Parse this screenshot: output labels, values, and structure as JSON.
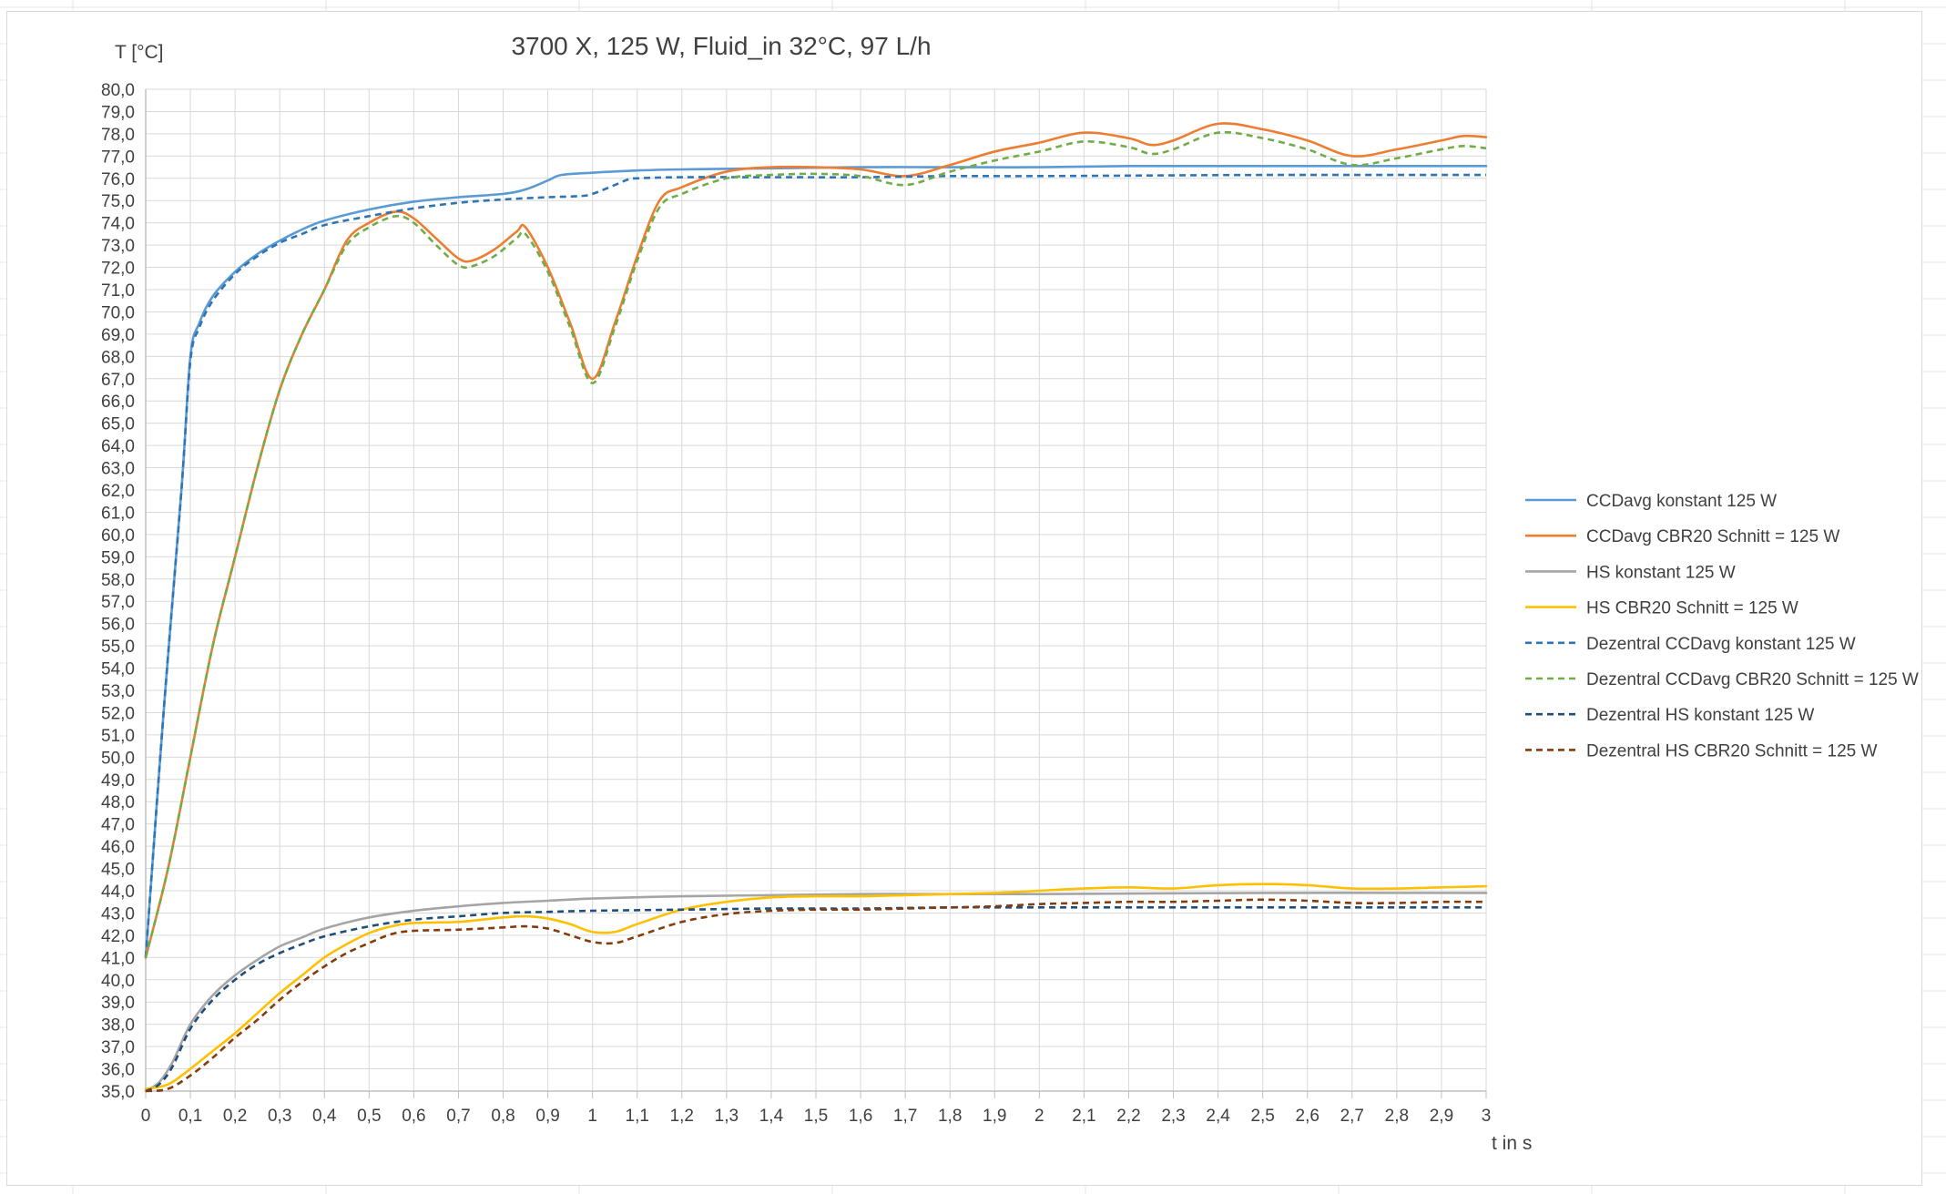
{
  "chart_data": {
    "type": "line",
    "title": "3700 X, 125 W, Fluid_in 32°C, 97 L/h",
    "ylabel": "T [°C]",
    "xlabel": "t in s",
    "xlim": [
      0,
      3
    ],
    "ylim": [
      35,
      80
    ],
    "x_ticks": [
      "0",
      "0,1",
      "0,2",
      "0,3",
      "0,4",
      "0,5",
      "0,6",
      "0,7",
      "0,8",
      "0,9",
      "1",
      "1,1",
      "1,2",
      "1,3",
      "1,4",
      "1,5",
      "1,6",
      "1,7",
      "1,8",
      "1,9",
      "2",
      "2,1",
      "2,2",
      "2,3",
      "2,4",
      "2,5",
      "2,6",
      "2,7",
      "2,8",
      "2,9",
      "3"
    ],
    "y_ticks": [
      "35,0",
      "36,0",
      "37,0",
      "38,0",
      "39,0",
      "40,0",
      "41,0",
      "42,0",
      "43,0",
      "44,0",
      "45,0",
      "46,0",
      "47,0",
      "48,0",
      "49,0",
      "50,0",
      "51,0",
      "52,0",
      "53,0",
      "54,0",
      "55,0",
      "56,0",
      "57,0",
      "58,0",
      "59,0",
      "60,0",
      "61,0",
      "62,0",
      "63,0",
      "64,0",
      "65,0",
      "66,0",
      "67,0",
      "68,0",
      "69,0",
      "70,0",
      "71,0",
      "72,0",
      "73,0",
      "74,0",
      "75,0",
      "76,0",
      "77,0",
      "78,0",
      "79,0",
      "80,0"
    ],
    "grid": true,
    "legend_position": "right",
    "series": [
      {
        "name": "CCDavg konstant 125 W",
        "color": "#5b9bd5",
        "dash": "solid",
        "points": [
          [
            0,
            41
          ],
          [
            0.04,
            52
          ],
          [
            0.08,
            62
          ],
          [
            0.1,
            68
          ],
          [
            0.12,
            69.5
          ],
          [
            0.15,
            70.7
          ],
          [
            0.2,
            71.8
          ],
          [
            0.25,
            72.6
          ],
          [
            0.3,
            73.2
          ],
          [
            0.35,
            73.7
          ],
          [
            0.4,
            74.1
          ],
          [
            0.5,
            74.6
          ],
          [
            0.6,
            74.95
          ],
          [
            0.7,
            75.15
          ],
          [
            0.8,
            75.3
          ],
          [
            0.85,
            75.5
          ],
          [
            0.9,
            75.9
          ],
          [
            0.93,
            76.15
          ],
          [
            1,
            76.25
          ],
          [
            1.1,
            76.35
          ],
          [
            1.2,
            76.4
          ],
          [
            1.4,
            76.45
          ],
          [
            1.6,
            76.5
          ],
          [
            1.8,
            76.5
          ],
          [
            2,
            76.5
          ],
          [
            2.2,
            76.55
          ],
          [
            2.5,
            76.55
          ],
          [
            3,
            76.55
          ]
        ]
      },
      {
        "name": "CCDavg CBR20 Schnitt = 125 W",
        "color": "#ed7d31",
        "dash": "solid",
        "points": [
          [
            0,
            41
          ],
          [
            0.05,
            45
          ],
          [
            0.1,
            50
          ],
          [
            0.15,
            55
          ],
          [
            0.2,
            59
          ],
          [
            0.25,
            63
          ],
          [
            0.3,
            66.5
          ],
          [
            0.35,
            69
          ],
          [
            0.4,
            71
          ],
          [
            0.45,
            73.2
          ],
          [
            0.5,
            74
          ],
          [
            0.56,
            74.5
          ],
          [
            0.6,
            74.2
          ],
          [
            0.65,
            73.3
          ],
          [
            0.7,
            72.4
          ],
          [
            0.73,
            72.3
          ],
          [
            0.78,
            72.8
          ],
          [
            0.83,
            73.6
          ],
          [
            0.85,
            73.8
          ],
          [
            0.9,
            72
          ],
          [
            0.95,
            69.5
          ],
          [
            1,
            67
          ],
          [
            1.05,
            69.5
          ],
          [
            1.1,
            72.5
          ],
          [
            1.15,
            75
          ],
          [
            1.2,
            75.6
          ],
          [
            1.3,
            76.3
          ],
          [
            1.4,
            76.5
          ],
          [
            1.5,
            76.5
          ],
          [
            1.6,
            76.4
          ],
          [
            1.7,
            76.1
          ],
          [
            1.8,
            76.6
          ],
          [
            1.9,
            77.2
          ],
          [
            2,
            77.6
          ],
          [
            2.1,
            78.05
          ],
          [
            2.2,
            77.8
          ],
          [
            2.25,
            77.5
          ],
          [
            2.3,
            77.7
          ],
          [
            2.4,
            78.45
          ],
          [
            2.5,
            78.2
          ],
          [
            2.6,
            77.7
          ],
          [
            2.7,
            77
          ],
          [
            2.8,
            77.3
          ],
          [
            2.9,
            77.7
          ],
          [
            2.95,
            77.9
          ],
          [
            3,
            77.85
          ]
        ]
      },
      {
        "name": "HS konstant 125 W",
        "color": "#a5a5a5",
        "dash": "solid",
        "points": [
          [
            0,
            35
          ],
          [
            0.03,
            35.4
          ],
          [
            0.06,
            36.3
          ],
          [
            0.1,
            38
          ],
          [
            0.15,
            39.3
          ],
          [
            0.2,
            40.2
          ],
          [
            0.25,
            40.9
          ],
          [
            0.3,
            41.5
          ],
          [
            0.35,
            41.9
          ],
          [
            0.4,
            42.3
          ],
          [
            0.5,
            42.8
          ],
          [
            0.6,
            43.1
          ],
          [
            0.7,
            43.3
          ],
          [
            0.8,
            43.45
          ],
          [
            0.9,
            43.55
          ],
          [
            1,
            43.65
          ],
          [
            1.2,
            43.75
          ],
          [
            1.4,
            43.8
          ],
          [
            1.6,
            43.85
          ],
          [
            1.8,
            43.85
          ],
          [
            2,
            43.85
          ],
          [
            2.5,
            43.9
          ],
          [
            3,
            43.9
          ]
        ]
      },
      {
        "name": "HS CBR20 Schnitt = 125 W",
        "color": "#ffc000",
        "dash": "solid",
        "points": [
          [
            0,
            35.1
          ],
          [
            0.05,
            35.3
          ],
          [
            0.1,
            36
          ],
          [
            0.15,
            36.8
          ],
          [
            0.2,
            37.6
          ],
          [
            0.25,
            38.5
          ],
          [
            0.3,
            39.4
          ],
          [
            0.35,
            40.2
          ],
          [
            0.4,
            41
          ],
          [
            0.45,
            41.6
          ],
          [
            0.5,
            42.1
          ],
          [
            0.55,
            42.4
          ],
          [
            0.6,
            42.55
          ],
          [
            0.7,
            42.6
          ],
          [
            0.8,
            42.8
          ],
          [
            0.85,
            42.85
          ],
          [
            0.9,
            42.75
          ],
          [
            0.95,
            42.5
          ],
          [
            1,
            42.15
          ],
          [
            1.05,
            42.15
          ],
          [
            1.1,
            42.5
          ],
          [
            1.2,
            43.15
          ],
          [
            1.3,
            43.5
          ],
          [
            1.4,
            43.7
          ],
          [
            1.5,
            43.75
          ],
          [
            1.6,
            43.75
          ],
          [
            1.7,
            43.8
          ],
          [
            1.8,
            43.85
          ],
          [
            1.9,
            43.9
          ],
          [
            2,
            44
          ],
          [
            2.1,
            44.1
          ],
          [
            2.2,
            44.15
          ],
          [
            2.3,
            44.1
          ],
          [
            2.4,
            44.25
          ],
          [
            2.5,
            44.3
          ],
          [
            2.6,
            44.25
          ],
          [
            2.7,
            44.1
          ],
          [
            2.8,
            44.1
          ],
          [
            2.9,
            44.15
          ],
          [
            3,
            44.2
          ]
        ]
      },
      {
        "name": "Dezentral CCDavg konstant 125 W",
        "color": "#2e75b6",
        "dash": "dashed",
        "points": [
          [
            0,
            41
          ],
          [
            0.04,
            52
          ],
          [
            0.08,
            62
          ],
          [
            0.1,
            67.8
          ],
          [
            0.12,
            69.3
          ],
          [
            0.15,
            70.5
          ],
          [
            0.2,
            71.7
          ],
          [
            0.25,
            72.5
          ],
          [
            0.3,
            73.1
          ],
          [
            0.35,
            73.5
          ],
          [
            0.4,
            73.9
          ],
          [
            0.5,
            74.3
          ],
          [
            0.6,
            74.65
          ],
          [
            0.7,
            74.9
          ],
          [
            0.8,
            75.05
          ],
          [
            0.9,
            75.15
          ],
          [
            0.97,
            75.2
          ],
          [
            1,
            75.3
          ],
          [
            1.05,
            75.7
          ],
          [
            1.08,
            75.95
          ],
          [
            1.1,
            76
          ],
          [
            1.2,
            76.05
          ],
          [
            1.4,
            76.05
          ],
          [
            1.6,
            76.05
          ],
          [
            1.8,
            76.1
          ],
          [
            2,
            76.1
          ],
          [
            2.5,
            76.15
          ],
          [
            3,
            76.15
          ]
        ]
      },
      {
        "name": "Dezentral CCDavg CBR20 Schnitt = 125 W",
        "color": "#70ad47",
        "dash": "dashed",
        "points": [
          [
            0,
            41
          ],
          [
            0.05,
            45
          ],
          [
            0.1,
            50
          ],
          [
            0.15,
            55
          ],
          [
            0.2,
            59
          ],
          [
            0.25,
            63
          ],
          [
            0.3,
            66.5
          ],
          [
            0.35,
            69
          ],
          [
            0.4,
            71
          ],
          [
            0.45,
            73
          ],
          [
            0.5,
            73.8
          ],
          [
            0.56,
            74.3
          ],
          [
            0.6,
            74
          ],
          [
            0.65,
            73
          ],
          [
            0.7,
            72.1
          ],
          [
            0.73,
            72.05
          ],
          [
            0.78,
            72.5
          ],
          [
            0.83,
            73.3
          ],
          [
            0.85,
            73.5
          ],
          [
            0.9,
            71.8
          ],
          [
            0.95,
            69.3
          ],
          [
            1,
            66.8
          ],
          [
            1.05,
            69.3
          ],
          [
            1.1,
            72.3
          ],
          [
            1.15,
            74.7
          ],
          [
            1.2,
            75.3
          ],
          [
            1.3,
            76
          ],
          [
            1.4,
            76.15
          ],
          [
            1.5,
            76.2
          ],
          [
            1.6,
            76.1
          ],
          [
            1.7,
            75.7
          ],
          [
            1.8,
            76.3
          ],
          [
            1.9,
            76.8
          ],
          [
            2,
            77.2
          ],
          [
            2.1,
            77.65
          ],
          [
            2.2,
            77.4
          ],
          [
            2.25,
            77.1
          ],
          [
            2.3,
            77.3
          ],
          [
            2.4,
            78.05
          ],
          [
            2.5,
            77.8
          ],
          [
            2.6,
            77.3
          ],
          [
            2.7,
            76.6
          ],
          [
            2.8,
            76.9
          ],
          [
            2.9,
            77.3
          ],
          [
            2.95,
            77.45
          ],
          [
            3,
            77.35
          ]
        ]
      },
      {
        "name": "Dezentral HS konstant 125 W",
        "color": "#1f4e79",
        "dash": "dashed",
        "points": [
          [
            0,
            35
          ],
          [
            0.03,
            35.3
          ],
          [
            0.06,
            36.1
          ],
          [
            0.1,
            37.8
          ],
          [
            0.15,
            39.1
          ],
          [
            0.2,
            40
          ],
          [
            0.25,
            40.7
          ],
          [
            0.3,
            41.2
          ],
          [
            0.35,
            41.6
          ],
          [
            0.4,
            41.95
          ],
          [
            0.5,
            42.4
          ],
          [
            0.6,
            42.7
          ],
          [
            0.7,
            42.85
          ],
          [
            0.8,
            43
          ],
          [
            0.9,
            43.05
          ],
          [
            1,
            43.1
          ],
          [
            1.2,
            43.15
          ],
          [
            1.4,
            43.2
          ],
          [
            1.6,
            43.2
          ],
          [
            1.8,
            43.25
          ],
          [
            2,
            43.25
          ],
          [
            2.5,
            43.25
          ],
          [
            3,
            43.25
          ]
        ]
      },
      {
        "name": "Dezentral HS CBR20 Schnitt = 125 W",
        "color": "#843c0c",
        "dash": "dashed",
        "points": [
          [
            0,
            35
          ],
          [
            0.05,
            35.1
          ],
          [
            0.1,
            35.7
          ],
          [
            0.15,
            36.5
          ],
          [
            0.2,
            37.4
          ],
          [
            0.25,
            38.2
          ],
          [
            0.3,
            39.1
          ],
          [
            0.35,
            39.9
          ],
          [
            0.4,
            40.6
          ],
          [
            0.45,
            41.2
          ],
          [
            0.5,
            41.65
          ],
          [
            0.55,
            42.05
          ],
          [
            0.6,
            42.2
          ],
          [
            0.7,
            42.25
          ],
          [
            0.8,
            42.35
          ],
          [
            0.85,
            42.4
          ],
          [
            0.9,
            42.3
          ],
          [
            0.95,
            42
          ],
          [
            1,
            41.7
          ],
          [
            1.05,
            41.65
          ],
          [
            1.1,
            41.95
          ],
          [
            1.2,
            42.6
          ],
          [
            1.3,
            42.95
          ],
          [
            1.4,
            43.1
          ],
          [
            1.5,
            43.15
          ],
          [
            1.6,
            43.15
          ],
          [
            1.7,
            43.2
          ],
          [
            1.8,
            43.25
          ],
          [
            1.9,
            43.3
          ],
          [
            2,
            43.4
          ],
          [
            2.1,
            43.45
          ],
          [
            2.2,
            43.5
          ],
          [
            2.3,
            43.5
          ],
          [
            2.4,
            43.55
          ],
          [
            2.5,
            43.6
          ],
          [
            2.6,
            43.55
          ],
          [
            2.7,
            43.45
          ],
          [
            2.8,
            43.45
          ],
          [
            2.9,
            43.5
          ],
          [
            3,
            43.5
          ]
        ]
      }
    ]
  }
}
